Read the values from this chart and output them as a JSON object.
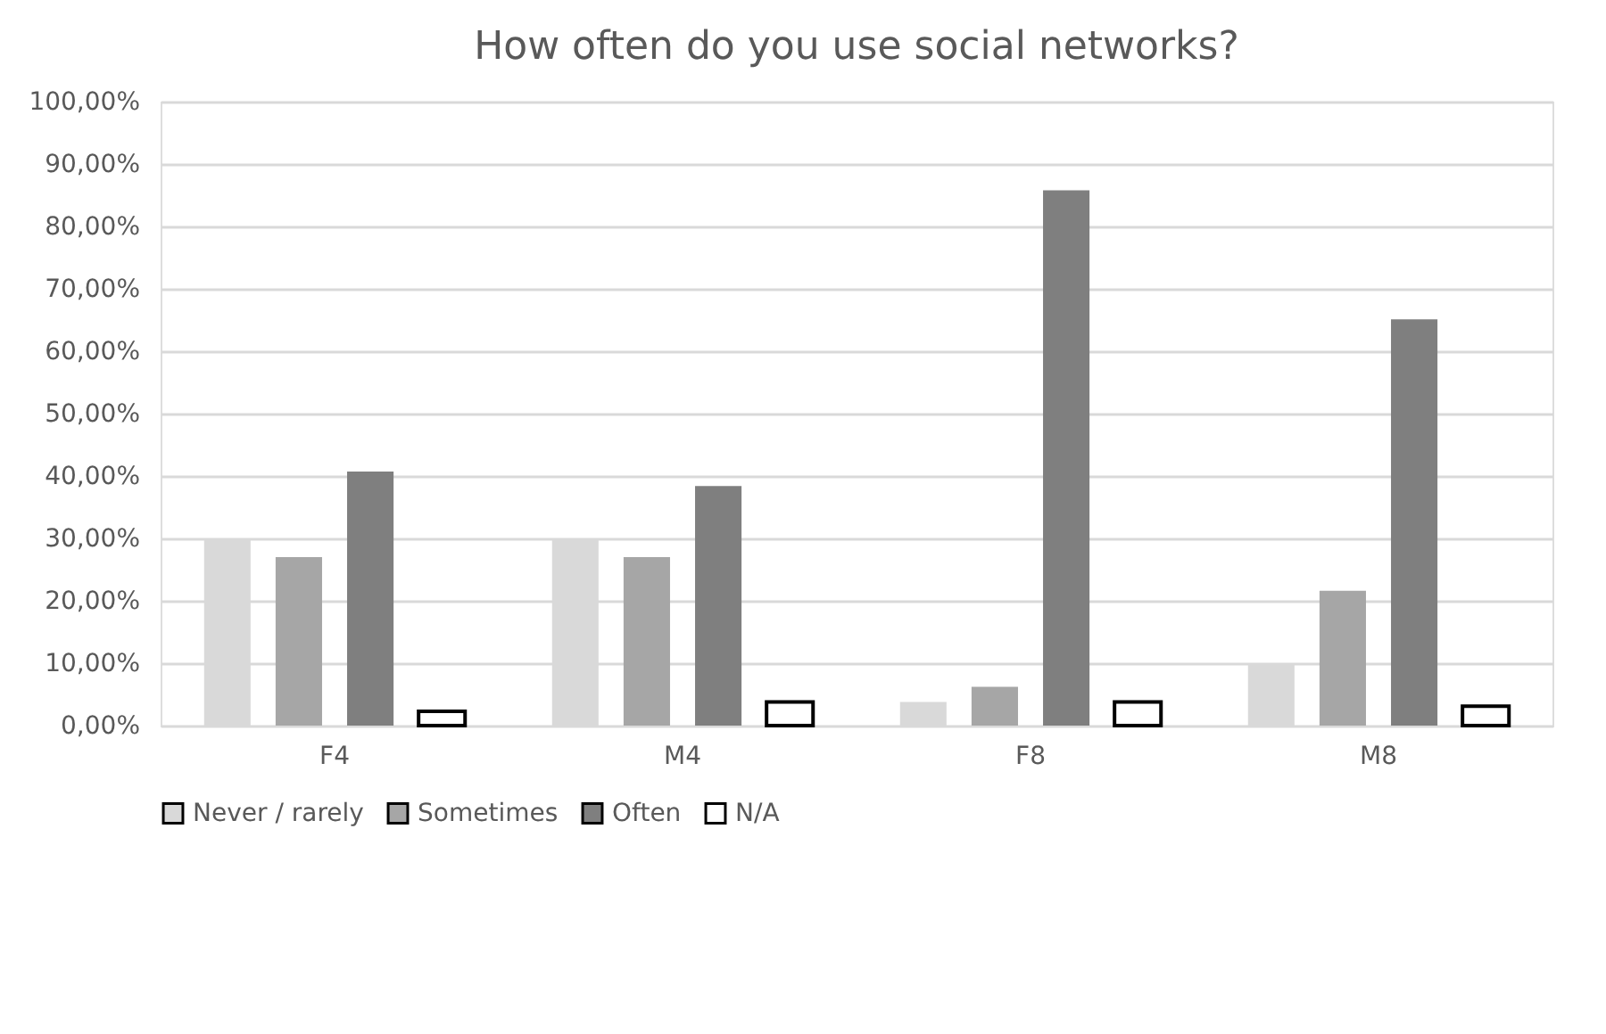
{
  "chart_data": {
    "type": "bar",
    "title": "How often do you use social networks?",
    "categories": [
      "F4",
      "M4",
      "F8",
      "M8"
    ],
    "series": [
      {
        "name": "Never / rarely",
        "color": "#d9d9d9",
        "values": [
          30,
          30,
          3.8,
          9.8
        ]
      },
      {
        "name": "Sometimes",
        "color": "#a6a6a6",
        "values": [
          27,
          27,
          6.2,
          21.6
        ]
      },
      {
        "name": "Often",
        "color": "#7f7f7f",
        "values": [
          40.7,
          38.4,
          85.8,
          65.1
        ]
      },
      {
        "name": "N/A",
        "color": "#ffffff",
        "values": [
          2.3,
          3.8,
          3.8,
          3.1
        ]
      }
    ],
    "ylim": [
      0,
      100
    ],
    "yticks": [
      {
        "value": 0,
        "label": "0,00%"
      },
      {
        "value": 10,
        "label": "10,00%"
      },
      {
        "value": 20,
        "label": "20,00%"
      },
      {
        "value": 30,
        "label": "30,00%"
      },
      {
        "value": 40,
        "label": "40,00%"
      },
      {
        "value": 50,
        "label": "50,00%"
      },
      {
        "value": 60,
        "label": "60,00%"
      },
      {
        "value": 70,
        "label": "70,00%"
      },
      {
        "value": 80,
        "label": "80,00%"
      },
      {
        "value": 90,
        "label": "90,00%"
      },
      {
        "value": 100,
        "label": "100,00%"
      }
    ],
    "grid": "y",
    "legend": "bottom"
  }
}
